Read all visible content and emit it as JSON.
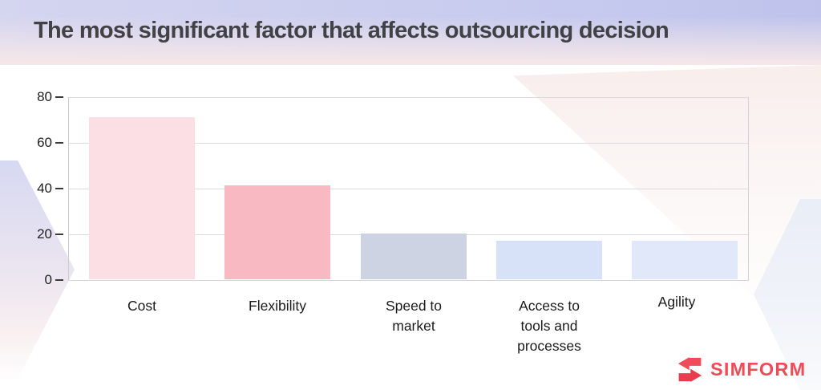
{
  "title": "The most significant factor that affects outsourcing decision",
  "brand": {
    "name": "SIMFORM",
    "logo_icon": "simform-s-arrows-icon",
    "color": "#EF4B59"
  },
  "colors": {
    "title_text": "#414146",
    "axis_text": "#202022",
    "gridline": "#DBDBE0",
    "header_gradient_top": "#C9CCEE",
    "header_gradient_bottom": "#F5E7E9",
    "hexagon_left": "#D6D9F2",
    "hexagon_bottom_right": "#E9EDF6"
  },
  "chart_data": {
    "type": "bar",
    "title": "The most significant factor that affects outsourcing decision",
    "categories": [
      "Cost",
      "Flexibility",
      "Speed to market",
      "Access to tools and processes",
      "Agility"
    ],
    "display_labels": [
      "Cost",
      "Flexibility",
      "Speed to\nmarket",
      "Access to\ntools and\nprocesses",
      "Agility"
    ],
    "values": [
      71,
      41,
      20,
      17,
      17
    ],
    "bar_colors": [
      "#FBDFE4",
      "#F8B9C2",
      "#CDD3E2",
      "#D7E1F7",
      "#E1E8FA"
    ],
    "xlabel": "",
    "ylabel": "",
    "ylim": [
      0,
      80
    ],
    "y_ticks": [
      80,
      60,
      40,
      20,
      0
    ],
    "grid": true,
    "legend": false
  }
}
